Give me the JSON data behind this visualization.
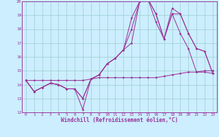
{
  "title": "",
  "xlabel": "Windchill (Refroidissement éolien,°C)",
  "xlim": [
    -0.5,
    23.5
  ],
  "ylim": [
    12,
    20
  ],
  "xticks": [
    0,
    1,
    2,
    3,
    4,
    5,
    6,
    7,
    8,
    9,
    10,
    11,
    12,
    13,
    14,
    15,
    16,
    17,
    18,
    19,
    20,
    21,
    22,
    23
  ],
  "yticks": [
    12,
    13,
    14,
    15,
    16,
    17,
    18,
    19,
    20
  ],
  "background_color": "#cceeff",
  "line_color": "#993399",
  "grid_color": "#99cccc",
  "series": [
    [
      14.3,
      13.5,
      13.8,
      14.1,
      14.0,
      13.7,
      13.7,
      12.2,
      14.4,
      14.7,
      15.5,
      15.9,
      16.5,
      18.0,
      20.0,
      20.2,
      19.1,
      17.3,
      19.1,
      17.7,
      16.6,
      14.9,
      14.9,
      14.8
    ],
    [
      14.3,
      13.5,
      13.8,
      14.1,
      14.0,
      13.7,
      13.7,
      13.0,
      14.4,
      14.7,
      15.5,
      15.9,
      16.5,
      18.8,
      20.0,
      20.2,
      18.5,
      17.3,
      19.5,
      19.1,
      17.7,
      16.6,
      16.4,
      14.8
    ],
    [
      14.3,
      14.3,
      14.3,
      14.3,
      14.3,
      14.3,
      14.3,
      14.3,
      14.4,
      14.5,
      14.5,
      14.5,
      14.5,
      14.5,
      14.5,
      14.5,
      14.5,
      14.6,
      14.7,
      14.8,
      14.9,
      14.9,
      15.0,
      15.0
    ],
    [
      14.3,
      13.5,
      13.8,
      14.1,
      14.0,
      13.7,
      13.7,
      13.0,
      14.4,
      14.7,
      15.5,
      15.9,
      16.5,
      17.0,
      20.0,
      20.2,
      19.1,
      17.3,
      19.1,
      19.1,
      17.7,
      16.6,
      16.4,
      14.8
    ]
  ]
}
